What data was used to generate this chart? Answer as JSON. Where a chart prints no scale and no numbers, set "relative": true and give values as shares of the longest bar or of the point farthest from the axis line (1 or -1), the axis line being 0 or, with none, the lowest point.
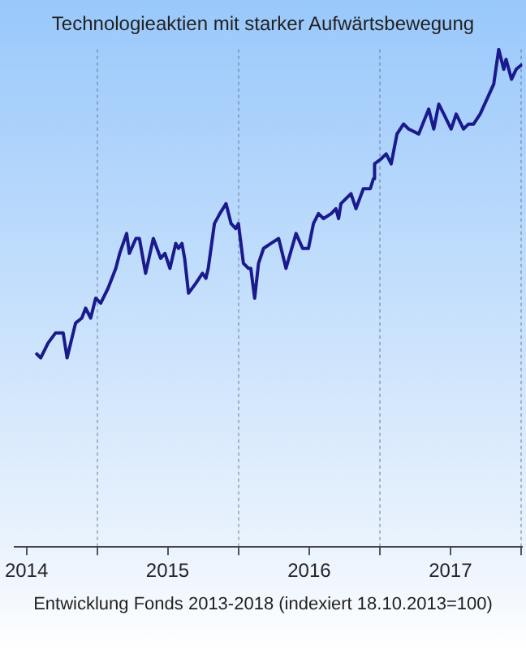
{
  "chart_data": {
    "type": "line",
    "title": "Technologieaktien mit starker Aufwärtsbewegung",
    "relative": true,
    "grid": "x",
    "legend": false,
    "marker": "none",
    "line_style": "solid",
    "xlim": [
      "2014-06-01",
      "2018-01-04"
    ],
    "xticks": [
      {
        "value": "2014-07-02",
        "label": "2014"
      },
      {
        "value": "2015-01-01",
        "label": null
      },
      {
        "value": "2015-07-02",
        "label": "2015"
      },
      {
        "value": "2016-01-01",
        "label": null
      },
      {
        "value": "2016-07-02",
        "label": "2016"
      },
      {
        "value": "2017-01-01",
        "label": null
      },
      {
        "value": "2017-07-02",
        "label": "2017"
      },
      {
        "value": "2018-01-01",
        "label": null
      }
    ],
    "x": [
      "2014-07-26",
      "2014-08-08",
      "2014-08-27",
      "2014-09-15",
      "2014-09-26",
      "2014-10-05",
      "2014-10-15",
      "2014-11-06",
      "2014-11-22",
      "2014-12-02",
      "2014-12-15",
      "2014-12-28",
      "2015-01-10",
      "2015-01-29",
      "2015-02-18",
      "2015-02-28",
      "2015-03-09",
      "2015-03-18",
      "2015-03-25",
      "2015-04-11",
      "2015-04-20",
      "2015-05-06",
      "2015-05-26",
      "2015-06-14",
      "2015-06-25",
      "2015-07-08",
      "2015-07-23",
      "2015-07-30",
      "2015-08-08",
      "2015-08-15",
      "2015-08-25",
      "2015-09-13",
      "2015-09-30",
      "2015-10-09",
      "2015-10-15",
      "2015-10-31",
      "2015-11-14",
      "2015-11-30",
      "2015-12-13",
      "2015-12-25",
      "2016-01-01",
      "2016-01-14",
      "2016-01-27",
      "2016-02-02",
      "2016-02-12",
      "2016-02-22",
      "2016-03-06",
      "2016-03-25",
      "2016-04-14",
      "2016-05-03",
      "2016-05-29",
      "2016-06-15",
      "2016-06-30",
      "2016-07-13",
      "2016-07-26",
      "2016-08-08",
      "2016-08-28",
      "2016-09-09",
      "2016-09-16",
      "2016-09-22",
      "2016-10-18",
      "2016-10-31",
      "2016-11-19",
      "2016-12-07",
      "2016-12-15",
      "2016-12-18",
      "2017-01-04",
      "2017-01-17",
      "2017-01-30",
      "2017-02-14",
      "2017-03-03",
      "2017-03-16",
      "2017-04-11",
      "2017-05-07",
      "2017-05-20",
      "2017-06-02",
      "2017-06-15",
      "2017-07-04",
      "2017-07-17",
      "2017-08-05",
      "2017-08-18",
      "2017-08-31",
      "2017-09-17",
      "2017-10-22",
      "2017-11-04",
      "2017-11-17",
      "2017-11-23",
      "2017-12-07",
      "2017-12-19",
      "2018-01-04"
    ],
    "series": [
      {
        "color": "#1a1a8c",
        "values": [
          0.39,
          0.38,
          0.41,
          0.43,
          0.43,
          0.43,
          0.38,
          0.45,
          0.46,
          0.48,
          0.46,
          0.5,
          0.49,
          0.52,
          0.56,
          0.59,
          0.61,
          0.63,
          0.59,
          0.62,
          0.62,
          0.55,
          0.62,
          0.58,
          0.59,
          0.56,
          0.61,
          0.6,
          0.61,
          0.58,
          0.51,
          0.53,
          0.55,
          0.54,
          0.56,
          0.65,
          0.67,
          0.69,
          0.65,
          0.64,
          0.65,
          0.57,
          0.56,
          0.56,
          0.5,
          0.57,
          0.6,
          0.61,
          0.62,
          0.56,
          0.63,
          0.6,
          0.6,
          0.65,
          0.67,
          0.66,
          0.67,
          0.68,
          0.66,
          0.69,
          0.71,
          0.68,
          0.72,
          0.72,
          0.74,
          0.77,
          0.78,
          0.79,
          0.77,
          0.83,
          0.85,
          0.84,
          0.83,
          0.88,
          0.84,
          0.89,
          0.87,
          0.84,
          0.87,
          0.84,
          0.85,
          0.85,
          0.87,
          0.93,
          1,
          0.96,
          0.98,
          0.94,
          0.96,
          0.97
        ]
      }
    ],
    "annotations": [
      "Entwicklung Fonds 2013-2018 (indexiert 18.10.2013=100)"
    ]
  }
}
